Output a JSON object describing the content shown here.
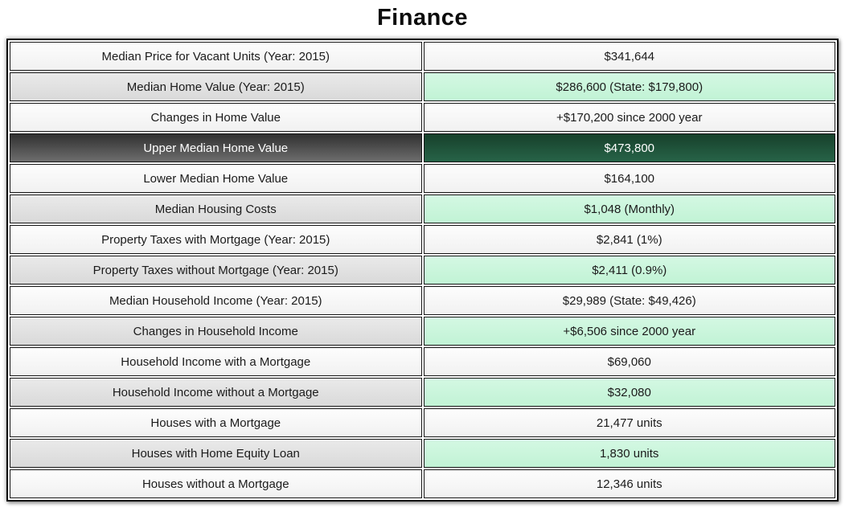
{
  "page": {
    "title": "Finance"
  },
  "finance_table": {
    "rows": [
      {
        "label": "Median Price for Vacant Units (Year: 2015)",
        "value": "$341,644",
        "style": "plain"
      },
      {
        "label": "Median Home Value (Year: 2015)",
        "value": "$286,600 (State: $179,800)",
        "style": "alt"
      },
      {
        "label": "Changes in Home Value",
        "value": "+$170,200 since 2000 year",
        "style": "plain"
      },
      {
        "label": "Upper Median Home Value",
        "value": "$473,800",
        "style": "selected"
      },
      {
        "label": "Lower Median Home Value",
        "value": "$164,100",
        "style": "plain"
      },
      {
        "label": "Median Housing Costs",
        "value": "$1,048 (Monthly)",
        "style": "alt"
      },
      {
        "label": "Property Taxes with Mortgage (Year: 2015)",
        "value": "$2,841 (1%)",
        "style": "plain"
      },
      {
        "label": "Property Taxes without Mortgage (Year: 2015)",
        "value": "$2,411 (0.9%)",
        "style": "alt"
      },
      {
        "label": "Median Household Income (Year: 2015)",
        "value": "$29,989 (State: $49,426)",
        "style": "plain"
      },
      {
        "label": "Changes in Household Income",
        "value": "+$6,506 since 2000 year",
        "style": "alt"
      },
      {
        "label": "Household Income with a Mortgage",
        "value": "$69,060",
        "style": "plain"
      },
      {
        "label": "Household Income without a Mortgage",
        "value": "$32,080",
        "style": "alt"
      },
      {
        "label": "Houses with a Mortgage",
        "value": "21,477 units",
        "style": "plain"
      },
      {
        "label": "Houses with Home Equity Loan",
        "value": "1,830 units",
        "style": "alt"
      },
      {
        "label": "Houses without a Mortgage",
        "value": "12,346 units",
        "style": "plain"
      }
    ]
  },
  "colors": {
    "highlight_mint": "#c6f4d8",
    "alt_gray": "#e0e0e0",
    "selected_gray_top": "#303030",
    "selected_gray_bottom": "#6e6e6e",
    "selected_green_top": "#17402b",
    "selected_green_bottom": "#276448",
    "border_dark": "#161616",
    "text_dark": "#1b1b1b",
    "text_light": "#ffffff"
  }
}
